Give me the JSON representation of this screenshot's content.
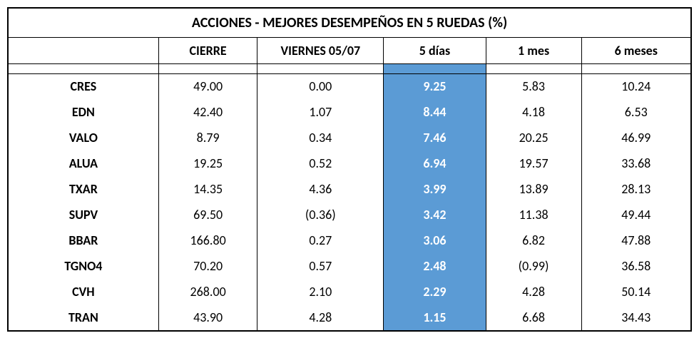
{
  "title": "ACCIONES   - MEJORES DESEMPEÑOS EN 5 RUEDAS (%)",
  "columns": {
    "ticker": "",
    "cierre": "CIERRE",
    "viernes": "VIERNES 05/07",
    "dias5": "5 días",
    "mes1": "1 mes",
    "meses6": "6 meses"
  },
  "highlight": {
    "column": "dias5",
    "bg_color": "#5b9bd5",
    "text_color": "#ffffff"
  },
  "rows": [
    {
      "ticker": "CRES",
      "cierre": "49.00",
      "viernes": "0.00",
      "dias5": "9.25",
      "mes1": "5.83",
      "meses6": "10.24"
    },
    {
      "ticker": "EDN",
      "cierre": "42.40",
      "viernes": "1.07",
      "dias5": "8.44",
      "mes1": "4.18",
      "meses6": "6.53"
    },
    {
      "ticker": "VALO",
      "cierre": "8.79",
      "viernes": "0.34",
      "dias5": "7.46",
      "mes1": "20.25",
      "meses6": "46.99"
    },
    {
      "ticker": "ALUA",
      "cierre": "19.25",
      "viernes": "0.52",
      "dias5": "6.94",
      "mes1": "19.57",
      "meses6": "33.68"
    },
    {
      "ticker": "TXAR",
      "cierre": "14.35",
      "viernes": "4.36",
      "dias5": "3.99",
      "mes1": "13.89",
      "meses6": "28.13"
    },
    {
      "ticker": "SUPV",
      "cierre": "69.50",
      "viernes": "(0.36)",
      "dias5": "3.42",
      "mes1": "11.38",
      "meses6": "49.44"
    },
    {
      "ticker": "BBAR",
      "cierre": "166.80",
      "viernes": "0.27",
      "dias5": "3.06",
      "mes1": "6.82",
      "meses6": "47.88"
    },
    {
      "ticker": "TGNO4",
      "cierre": "70.20",
      "viernes": "0.57",
      "dias5": "2.48",
      "mes1": "(0.99)",
      "meses6": "36.58"
    },
    {
      "ticker": "CVH",
      "cierre": "268.00",
      "viernes": "2.10",
      "dias5": "2.29",
      "mes1": "4.28",
      "meses6": "50.14"
    },
    {
      "ticker": "TRAN",
      "cierre": "43.90",
      "viernes": "4.28",
      "dias5": "1.15",
      "mes1": "6.68",
      "meses6": "34.43"
    }
  ],
  "styles": {
    "border_color": "#000000",
    "background_color": "#ffffff",
    "title_fontsize": 20,
    "header_fontsize": 18,
    "cell_fontsize": 18,
    "font_family": "Calibri, Arial, sans-serif"
  }
}
